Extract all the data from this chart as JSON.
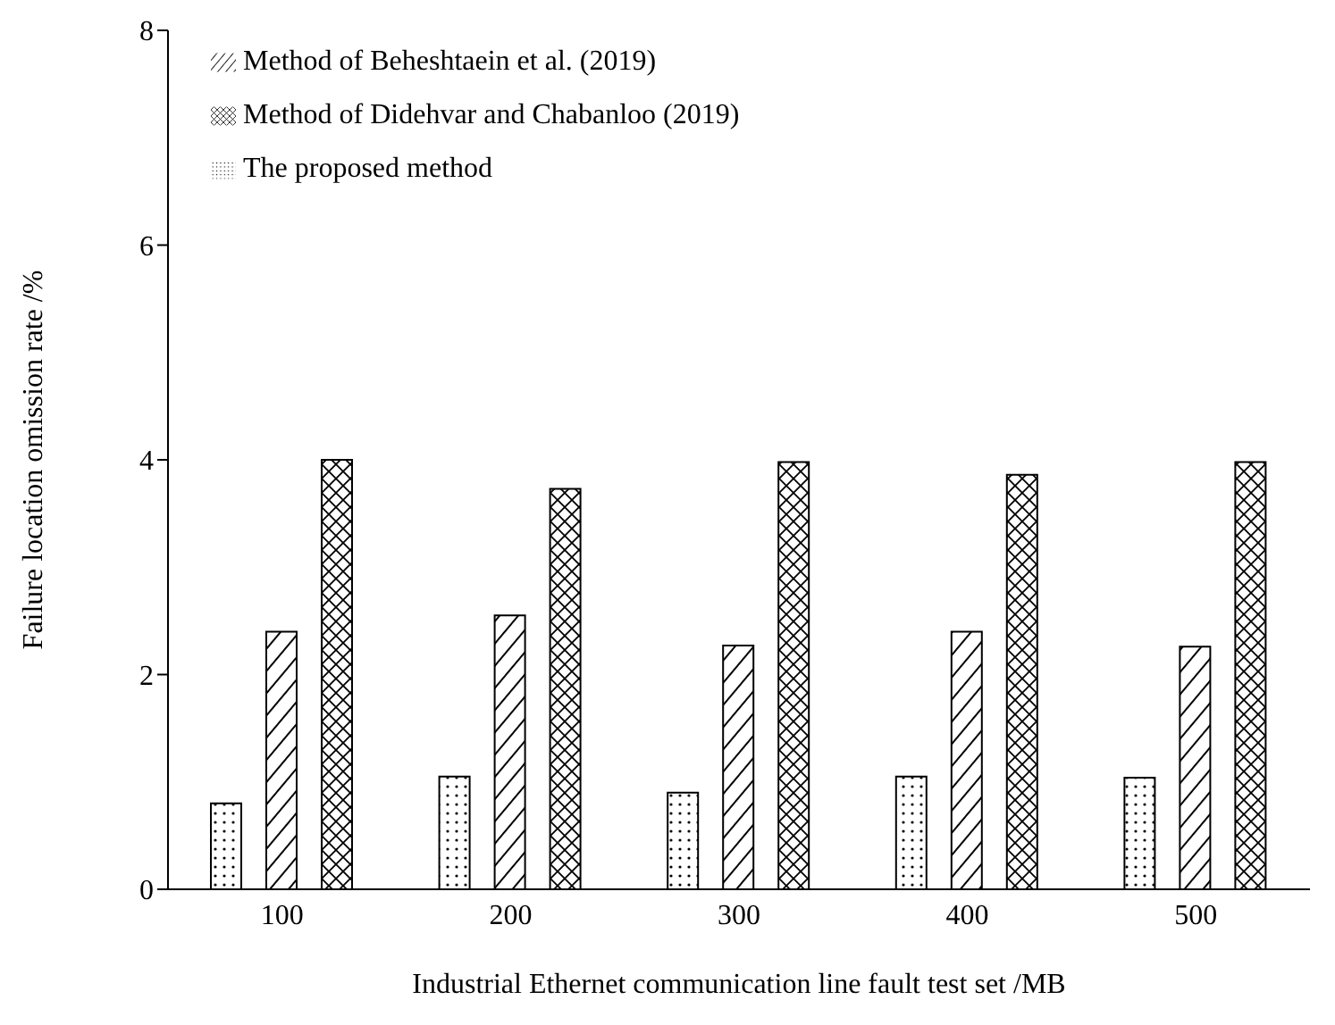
{
  "chart_data": {
    "type": "bar",
    "xlabel": "Industrial Ethernet communication line fault test set /MB",
    "ylabel": "Failure location omission rate /%",
    "categories": [
      "100",
      "200",
      "300",
      "400",
      "500"
    ],
    "series": [
      {
        "name": "The proposed method",
        "color": "#000000",
        "values": [
          0.8,
          1.05,
          0.9,
          1.05,
          1.04
        ]
      },
      {
        "name": "Method of Beheshtaein et al. (2019)",
        "color": "#000000",
        "values": [
          2.4,
          2.55,
          2.27,
          2.4,
          2.26
        ]
      },
      {
        "name": "Method of Didehvar and Chabanloo (2019)",
        "color": "#000000",
        "values": [
          4.0,
          3.73,
          3.98,
          3.86,
          3.98
        ]
      }
    ],
    "ylim": [
      0,
      8
    ],
    "yticks": [
      0,
      2,
      4,
      6,
      8
    ],
    "grid": false,
    "legend": "top left"
  }
}
